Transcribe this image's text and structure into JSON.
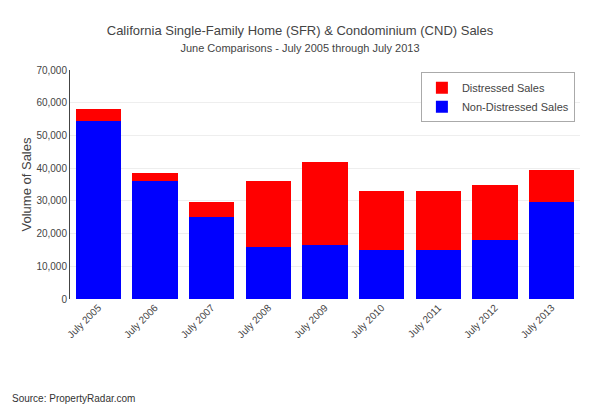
{
  "chart_data": {
    "type": "bar",
    "title": "California Single-Family Home (SFR) & Condominium (CND) Sales",
    "subtitle": "June Comparisons - July 2005 through July 2013",
    "ylabel": "Volume of Sales",
    "categories": [
      "July 2005",
      "July 2006",
      "July 2007",
      "July 2008",
      "July 2009",
      "July 2010",
      "July 2011",
      "July 2012",
      "July 2013"
    ],
    "series": [
      {
        "name": "Non-Distressed Sales",
        "color": "#0000FF",
        "values": [
          54500,
          36000,
          25000,
          16000,
          16500,
          15000,
          15000,
          18000,
          29500
        ]
      },
      {
        "name": "Distressed Sales",
        "color": "#FF0000",
        "values": [
          3500,
          2500,
          4500,
          20000,
          25500,
          18000,
          18000,
          17000,
          10000
        ]
      }
    ],
    "stacked": true,
    "ylim": [
      0,
      70000
    ],
    "yticks": [
      0,
      {
        "value": 10000,
        "label": "10,000"
      },
      {
        "value": 20000,
        "label": "20,000"
      },
      {
        "value": 30000,
        "label": "30,000"
      },
      {
        "value": 40000,
        "label": "40,000"
      },
      {
        "value": 50000,
        "label": "50,000"
      },
      {
        "value": 60000,
        "label": "60,000"
      },
      {
        "value": 70000,
        "label": "70,000"
      }
    ],
    "grid": true,
    "legend": "upper right",
    "annotations": [
      "Source: PropertyRadar.com"
    ]
  }
}
